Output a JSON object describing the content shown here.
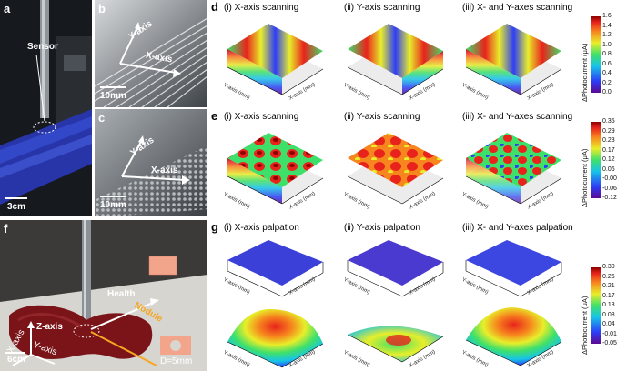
{
  "panels": {
    "a": {
      "label": "a",
      "sensor": "Sensor",
      "scale": "3cm"
    },
    "b": {
      "label": "b",
      "y_axis": "Y-axis",
      "x_axis": "X-axis",
      "scale": "10mm"
    },
    "c": {
      "label": "c",
      "y_axis": "Y-axis",
      "x_axis": "X-axis",
      "scale": "10mm"
    },
    "f": {
      "label": "f",
      "health": "Health",
      "nodule": "Nodule",
      "z_axis": "Z-axis",
      "x_axis": "X-axis",
      "y_axis": "Y-axis",
      "scale": "6cm",
      "diameter": "D=5mm"
    },
    "d": {
      "label": "d",
      "titles": [
        "(i) X-axis scanning",
        "(ii) Y-axis scanning",
        "(iii) X- and Y-axes scanning"
      ],
      "colorbar_label": "ΔPhotocurrent (μA)",
      "ticks": [
        "1.6",
        "1.4",
        "1.2",
        "1.0",
        "0.8",
        "0.6",
        "0.4",
        "0.2",
        "0.0"
      ]
    },
    "e": {
      "label": "e",
      "titles": [
        "(i) X-axis scanning",
        "(ii) Y-axis scanning",
        "(iii) X- and Y-axes scanning"
      ],
      "colorbar_label": "ΔPhotocurrent (μA)",
      "ticks": [
        "0.35",
        "0.29",
        "0.23",
        "0.17",
        "0.12",
        "0.06",
        "-0.00",
        "-0.06",
        "-0.12"
      ]
    },
    "g": {
      "label": "g",
      "titles": [
        "(i) X-axis palpation",
        "(ii) Y-axis palpation",
        "(iii) X- and Y-axes palpation"
      ],
      "colorbar_label": "ΔPhotocurrent (μA)",
      "ticks": [
        "0.30",
        "0.26",
        "0.21",
        "0.17",
        "0.13",
        "0.08",
        "0.04",
        "-0.01",
        "-0.05"
      ]
    }
  },
  "axes": {
    "x": "X-axis (mm)",
    "y": "Y-axis (mm)"
  },
  "colors": {
    "jet_top": "#8b0000",
    "jet_bottom": "#5b0a91",
    "tissue": "#7a1418",
    "highlight": "#f5a623"
  }
}
